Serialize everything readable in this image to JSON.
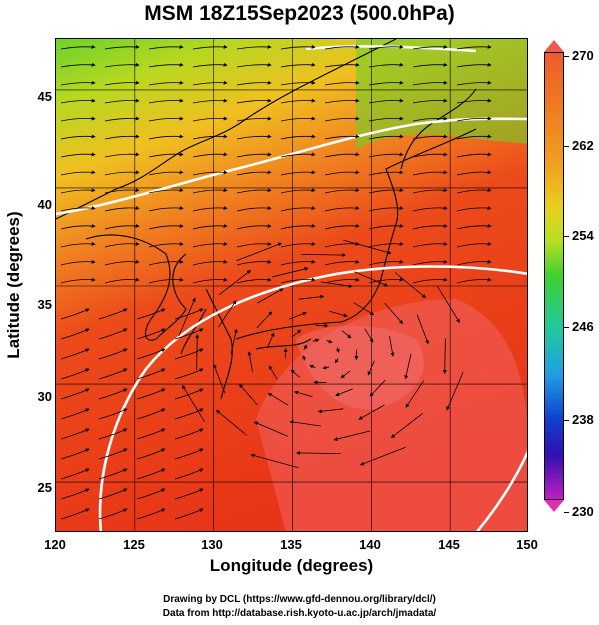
{
  "title": "MSM 18Z15Sep2023 (500.0hPa)",
  "axes": {
    "xlabel": "Longitude (degrees)",
    "ylabel": "Latitude  (degrees)",
    "xticks": [
      "120",
      "125",
      "130",
      "135",
      "140",
      "145",
      "150"
    ],
    "yticks": [
      "45",
      "40",
      "35",
      "30",
      "25"
    ],
    "xrange": [
      120,
      150
    ],
    "yrange": [
      22.4,
      47.6
    ]
  },
  "colorbar": {
    "ticks": [
      "270",
      "262",
      "254",
      "246",
      "238",
      "230"
    ],
    "range": [
      230,
      270
    ]
  },
  "credits": {
    "line1": "Drawing by DCL (https://www.gfd-dennou.org/library/dcl/)",
    "line2": "Data from http://database.rish.kyoto-u.ac.jp/arch/jmadata/"
  },
  "colors": {
    "warm": "#e83a1a",
    "warmest": "#f06060",
    "mid": "#f0a020",
    "cool": "#70d028",
    "contour": "#ffffff"
  }
}
